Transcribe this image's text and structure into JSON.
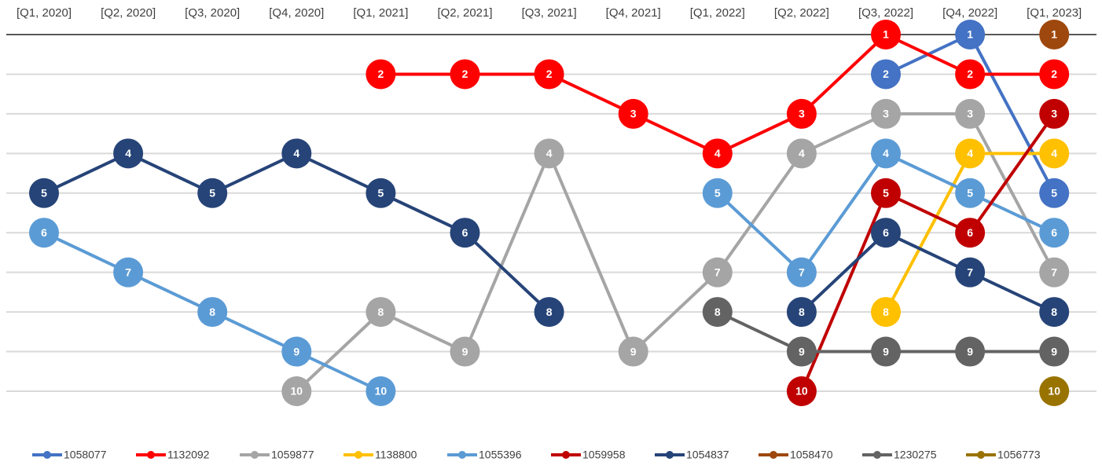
{
  "chart_data": {
    "type": "bump",
    "categories": [
      "[Q1, 2020]",
      "[Q2, 2020]",
      "[Q3, 2020]",
      "[Q4, 2020]",
      "[Q1, 2021]",
      "[Q2, 2021]",
      "[Q3, 2021]",
      "[Q4, 2021]",
      "[Q1, 2022]",
      "[Q2, 2022]",
      "[Q3, 2022]",
      "[Q4, 2022]",
      "[Q1, 2023]"
    ],
    "ylim": [
      1,
      10
    ],
    "y_reversed": true,
    "yticks": [
      1,
      2,
      3,
      4,
      5,
      6,
      7,
      8,
      9,
      10
    ],
    "grid": true,
    "legend": "bottom",
    "series": [
      {
        "name": "1058077",
        "color": "#4472c4",
        "values": [
          null,
          null,
          null,
          null,
          null,
          null,
          null,
          null,
          null,
          null,
          2,
          1,
          5
        ]
      },
      {
        "name": "1132092",
        "color": "#ff0000",
        "values": [
          null,
          null,
          null,
          null,
          2,
          2,
          2,
          3,
          4,
          3,
          1,
          2,
          2
        ]
      },
      {
        "name": "1059877",
        "color": "#a5a5a5",
        "values": [
          null,
          null,
          null,
          10,
          8,
          9,
          4,
          9,
          7,
          4,
          3,
          3,
          7
        ]
      },
      {
        "name": "1138800",
        "color": "#ffc000",
        "values": [
          null,
          null,
          null,
          null,
          null,
          null,
          null,
          null,
          null,
          null,
          8,
          4,
          4
        ]
      },
      {
        "name": "1055396",
        "color": "#5b9bd5",
        "values": [
          6,
          7,
          8,
          9,
          10,
          null,
          null,
          null,
          5,
          7,
          4,
          5,
          6
        ]
      },
      {
        "name": "1059958",
        "color": "#c00000",
        "values": [
          null,
          null,
          null,
          null,
          null,
          null,
          null,
          null,
          null,
          10,
          5,
          6,
          3
        ]
      },
      {
        "name": "1054837",
        "color": "#264478",
        "values": [
          5,
          4,
          5,
          4,
          5,
          6,
          8,
          null,
          null,
          8,
          6,
          7,
          8
        ]
      },
      {
        "name": "1058470",
        "color": "#9e480e",
        "values": [
          null,
          null,
          null,
          null,
          null,
          null,
          null,
          null,
          null,
          null,
          null,
          null,
          1
        ]
      },
      {
        "name": "1230275",
        "color": "#636363",
        "values": [
          null,
          null,
          null,
          null,
          null,
          null,
          null,
          null,
          8,
          9,
          9,
          9,
          9
        ]
      },
      {
        "name": "1056773",
        "color": "#997300",
        "values": [
          null,
          null,
          null,
          null,
          null,
          null,
          null,
          null,
          null,
          null,
          null,
          null,
          10
        ]
      }
    ]
  }
}
